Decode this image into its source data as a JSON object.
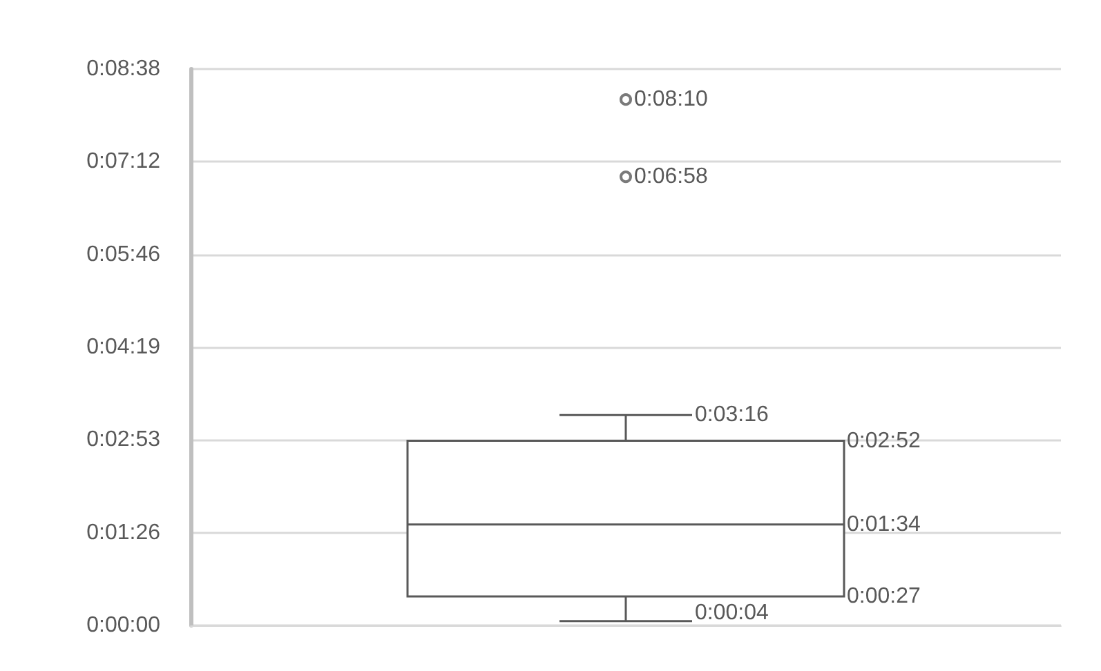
{
  "chart_data": {
    "type": "box",
    "categories": [
      null
    ],
    "boxes": [
      {
        "low": 4,
        "q1": 27,
        "median": 94,
        "q3": 172,
        "high": 196,
        "outliers": [
          418,
          490
        ]
      }
    ],
    "color": "#595959",
    "ylim": [
      0,
      518.4
    ],
    "yticks": [
      {
        "value": 0,
        "label": "0:00:00"
      },
      {
        "value": 86.4,
        "label": "0:01:26"
      },
      {
        "value": 172.8,
        "label": "0:02:53"
      },
      {
        "value": 259.2,
        "label": "0:04:19"
      },
      {
        "value": 345.6,
        "label": "0:05:46"
      },
      {
        "value": 432,
        "label": "0:07:12"
      },
      {
        "value": 518.4,
        "label": "0:08:38"
      }
    ],
    "grid": "y",
    "tick_labels": "y",
    "annotations": [
      "0:08:10",
      "0:06:58",
      "0:03:16",
      "0:02:52",
      "0:01:34",
      "0:00:27",
      "0:00:04"
    ]
  }
}
